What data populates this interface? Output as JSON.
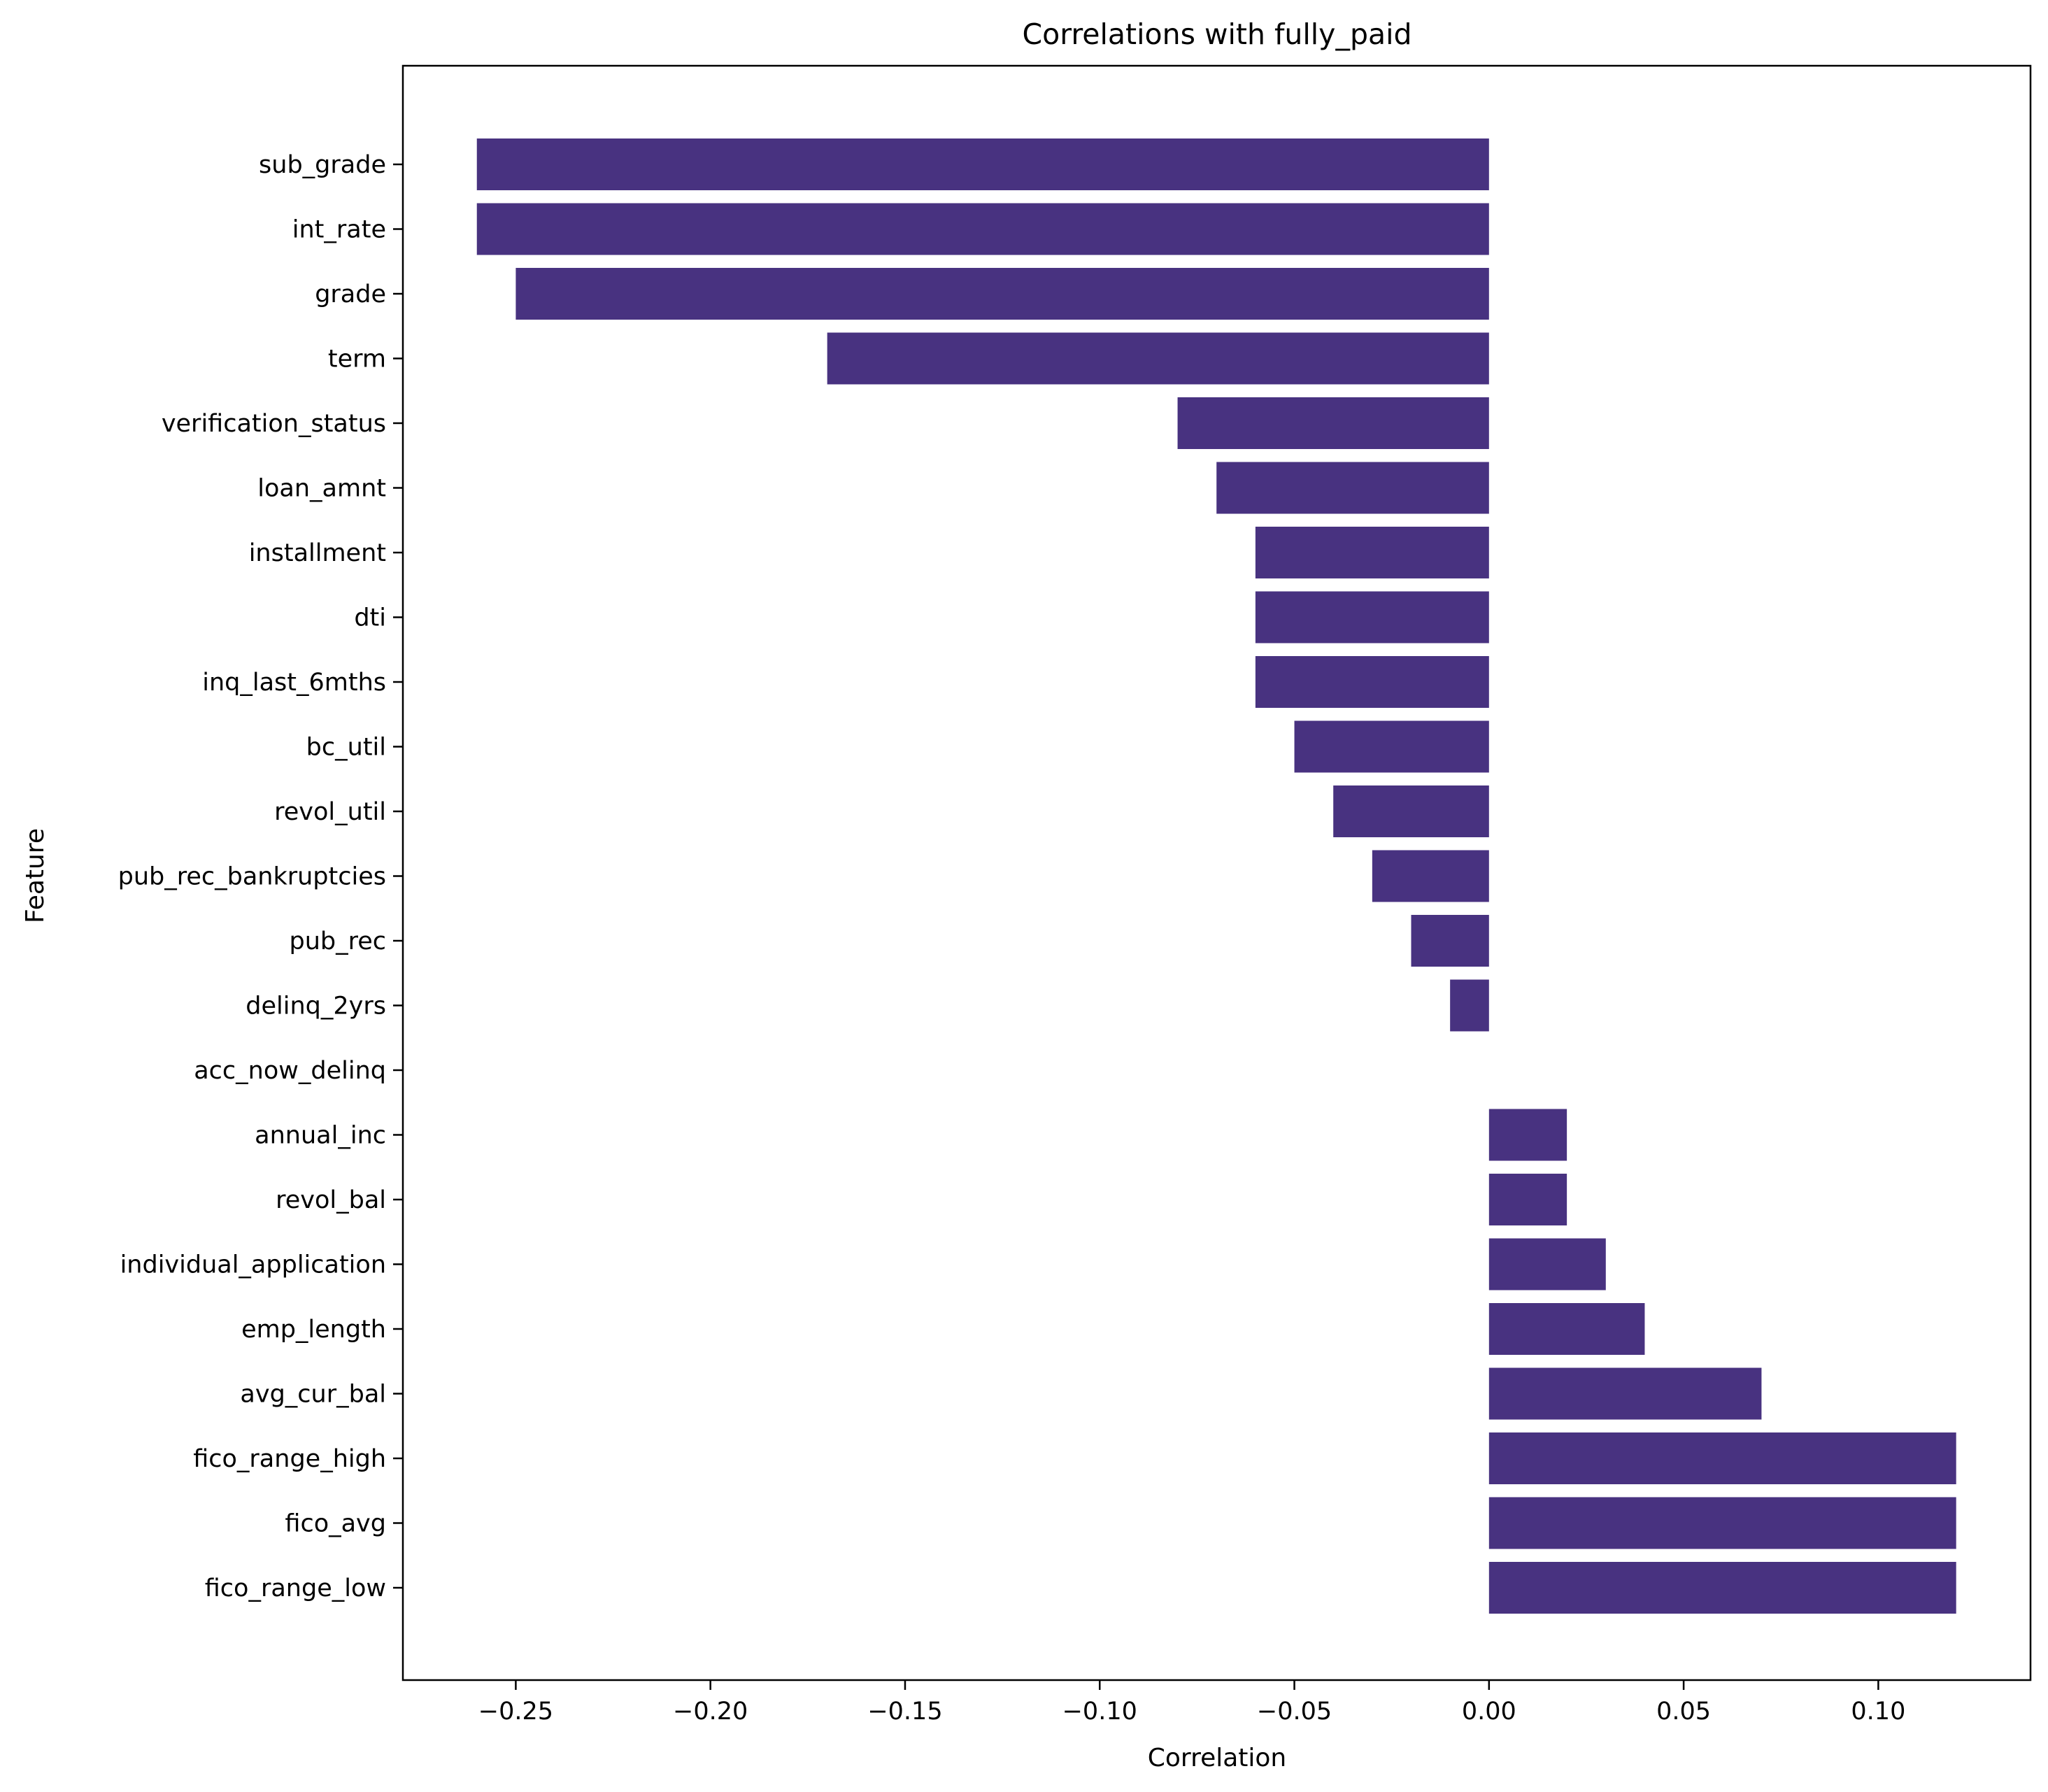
{
  "chart_data": {
    "type": "bar",
    "orientation": "horizontal",
    "title": "Correlations with fully_paid",
    "xlabel": "Correlation",
    "ylabel": "Feature",
    "xlim": [
      -0.279,
      0.1391
    ],
    "xticks": [
      -0.25,
      -0.2,
      -0.15,
      -0.1,
      -0.05,
      0.0,
      0.05,
      0.1
    ],
    "xtick_labels": [
      "−0.25",
      "−0.20",
      "−0.15",
      "−0.10",
      "−0.05",
      "0.00",
      "0.05",
      "0.10"
    ],
    "grid": false,
    "bar_color": "#483280",
    "categories": [
      "sub_grade",
      "int_rate",
      "grade",
      "term",
      "verification_status",
      "loan_amnt",
      "installment",
      "dti",
      "inq_last_6mths",
      "bc_util",
      "revol_util",
      "pub_rec_bankruptcies",
      "pub_rec",
      "delinq_2yrs",
      "acc_now_delinq",
      "annual_inc",
      "revol_bal",
      "individual_application",
      "emp_length",
      "avg_cur_bal",
      "fico_range_high",
      "fico_avg",
      "fico_range_low"
    ],
    "values": [
      -0.26,
      -0.26,
      -0.25,
      -0.17,
      -0.08,
      -0.07,
      -0.06,
      -0.06,
      -0.06,
      -0.05,
      -0.04,
      -0.03,
      -0.02,
      -0.01,
      0.0,
      0.02,
      0.02,
      0.03,
      0.04,
      0.07,
      0.12,
      0.12,
      0.12
    ]
  }
}
